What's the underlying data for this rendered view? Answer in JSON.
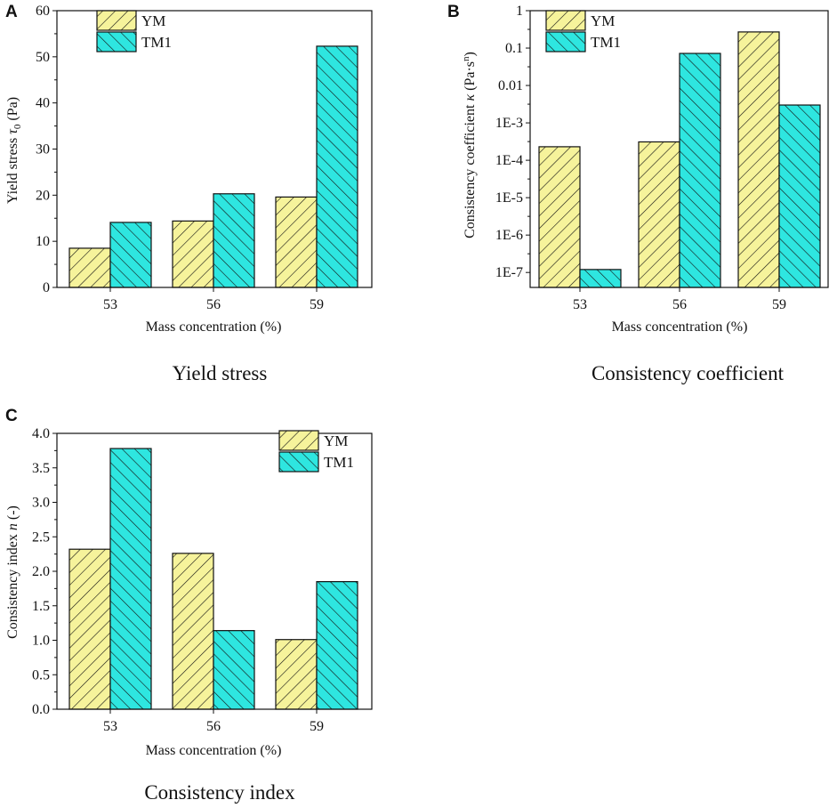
{
  "figure": {
    "patterns": {
      "YM": {
        "fill": "#f6f39b",
        "hatch": "forward"
      },
      "TM1": {
        "fill": "#2ee6e0",
        "hatch": "back"
      }
    }
  },
  "chart_data": [
    {
      "panel": "A",
      "type": "bar",
      "caption": "Yield stress",
      "title": "",
      "xlabel": "Mass concentration (%)",
      "ylabel_main": "Yield stress ",
      "ylabel_symbol": "τ",
      "ylabel_sub": "0",
      "ylabel_unit": " (Pa)",
      "scale": "linear",
      "categories": [
        "53",
        "56",
        "59"
      ],
      "ylim": [
        0,
        60
      ],
      "yticks": [
        0,
        10,
        20,
        30,
        40,
        50,
        60
      ],
      "ytick_labels": [
        "0",
        "10",
        "20",
        "30",
        "40",
        "50",
        "60"
      ],
      "legend_position": "top-left",
      "series": [
        {
          "name": "YM",
          "values": [
            8.5,
            14.4,
            19.6
          ]
        },
        {
          "name": "TM1",
          "values": [
            14.1,
            20.3,
            52.3
          ]
        }
      ]
    },
    {
      "panel": "B",
      "type": "bar",
      "caption": "Consistency coefficient",
      "title": "",
      "xlabel": "Mass concentration (%)",
      "ylabel_main": "Consistency coefficient ",
      "ylabel_symbol": "κ",
      "ylabel_unit": " (Pa·s",
      "ylabel_sup": "n",
      "ylabel_close": ")",
      "scale": "log",
      "categories": [
        "53",
        "56",
        "59"
      ],
      "ylim_exp": [
        -7.4,
        0
      ],
      "yticks_exp": [
        -7,
        -6,
        -5,
        -4,
        -3,
        -2,
        -1,
        0
      ],
      "ytick_labels": [
        "1E-7",
        "1E-6",
        "1E-5",
        "1E-4",
        "1E-3",
        "0.01",
        "0.1",
        "1"
      ],
      "legend_position": "top-left",
      "series": [
        {
          "name": "YM",
          "values": [
            0.00023,
            0.00031,
            0.27
          ]
        },
        {
          "name": "TM1",
          "values": [
            1.2e-07,
            0.072,
            0.003
          ]
        }
      ]
    },
    {
      "panel": "C",
      "type": "bar",
      "caption": "Consistency index",
      "title": "",
      "xlabel": "Mass concentration (%)",
      "ylabel_main": "Consistency index ",
      "ylabel_symbol": "n",
      "ylabel_unit": " (-)",
      "scale": "linear",
      "categories": [
        "53",
        "56",
        "59"
      ],
      "ylim": [
        0,
        4
      ],
      "yticks": [
        0,
        0.5,
        1,
        1.5,
        2,
        2.5,
        3,
        3.5,
        4
      ],
      "ytick_labels": [
        "0.0",
        "0.5",
        "1.0",
        "1.5",
        "2.0",
        "2.5",
        "3.0",
        "3.5",
        "4.0"
      ],
      "legend_position": "top-right",
      "series": [
        {
          "name": "YM",
          "values": [
            2.32,
            2.26,
            1.01
          ]
        },
        {
          "name": "TM1",
          "values": [
            3.78,
            1.14,
            1.85
          ]
        }
      ]
    }
  ]
}
